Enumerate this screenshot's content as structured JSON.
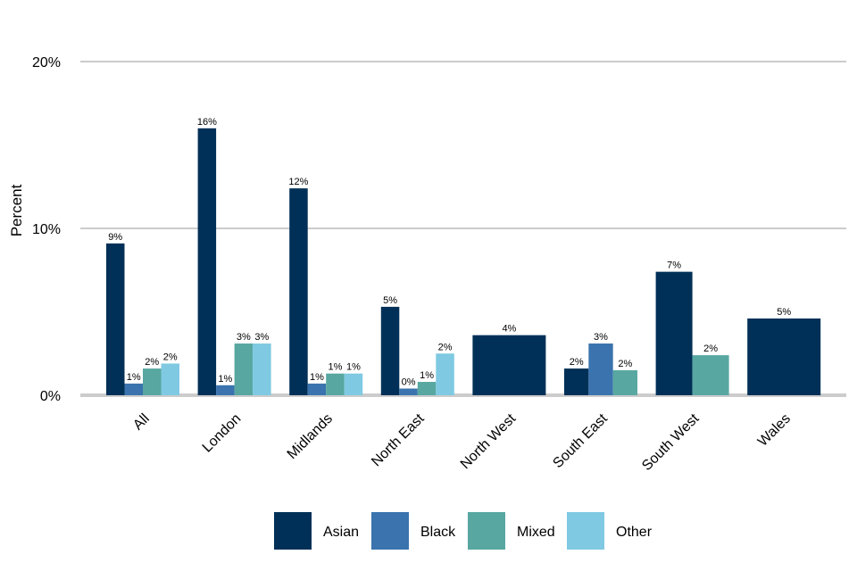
{
  "chart_data": {
    "type": "bar",
    "ylabel": "Percent",
    "ylim": [
      0,
      20
    ],
    "yticks": [
      0,
      10,
      20
    ],
    "ytick_labels": [
      "0%",
      "10%",
      "20%"
    ],
    "grid": true,
    "legend_position": "bottom",
    "categories": [
      "All",
      "London",
      "Midlands",
      "North East",
      "North West",
      "South East",
      "South West",
      "Wales"
    ],
    "series": [
      {
        "name": "Asian",
        "color": "#003057",
        "values": [
          9.1,
          16.0,
          12.4,
          5.3,
          3.6,
          1.6,
          7.4,
          4.6
        ],
        "labels": [
          "9%",
          "16%",
          "12%",
          "5%",
          "4%",
          "2%",
          "7%",
          "5%"
        ]
      },
      {
        "name": "Black",
        "color": "#3a73ad",
        "values": [
          0.7,
          0.6,
          0.7,
          0.4,
          null,
          3.1,
          null,
          null
        ],
        "labels": [
          "1%",
          "1%",
          "1%",
          "0%",
          null,
          "3%",
          null,
          null
        ]
      },
      {
        "name": "Mixed",
        "color": "#58a7a1",
        "values": [
          1.6,
          3.1,
          1.3,
          0.8,
          null,
          1.5,
          2.4,
          null
        ],
        "labels": [
          "2%",
          "3%",
          "1%",
          "1%",
          null,
          "2%",
          "2%",
          null
        ]
      },
      {
        "name": "Other",
        "color": "#7fc9e2",
        "values": [
          1.9,
          3.1,
          1.3,
          2.5,
          null,
          null,
          null,
          null
        ],
        "labels": [
          "2%",
          "3%",
          "1%",
          "2%",
          null,
          null,
          null,
          null
        ]
      }
    ]
  }
}
